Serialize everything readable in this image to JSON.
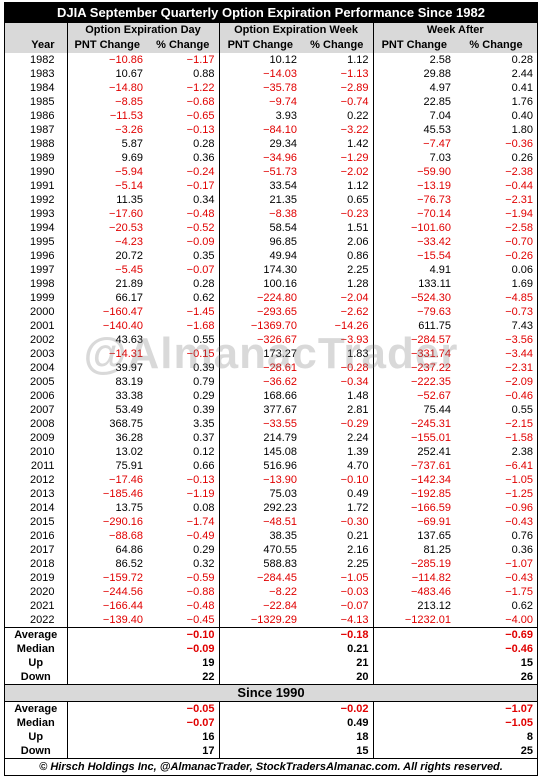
{
  "header": {
    "title": "DJIA September Quarterly Option Expiration Performance Since 1982"
  },
  "columns": {
    "groups": [
      "Option Expiration Day",
      "Option Expiration Week",
      "Week After"
    ],
    "labels": [
      "Year",
      "PNT Change",
      "% Change",
      "PNT Change",
      "% Change",
      "PNT Change",
      "% Change"
    ]
  },
  "table": {
    "rows": [
      [
        "1982",
        "−10.86",
        "−1.17",
        "10.12",
        "1.12",
        "2.58",
        "0.28"
      ],
      [
        "1983",
        "10.67",
        "0.88",
        "−14.03",
        "−1.13",
        "29.88",
        "2.44"
      ],
      [
        "1984",
        "−14.80",
        "−1.22",
        "−35.78",
        "−2.89",
        "4.97",
        "0.41"
      ],
      [
        "1985",
        "−8.85",
        "−0.68",
        "−9.74",
        "−0.74",
        "22.85",
        "1.76"
      ],
      [
        "1986",
        "−11.53",
        "−0.65",
        "3.93",
        "0.22",
        "7.04",
        "0.40"
      ],
      [
        "1987",
        "−3.26",
        "−0.13",
        "−84.10",
        "−3.22",
        "45.53",
        "1.80"
      ],
      [
        "1988",
        "5.87",
        "0.28",
        "29.34",
        "1.42",
        "−7.47",
        "−0.36"
      ],
      [
        "1989",
        "9.69",
        "0.36",
        "−34.96",
        "−1.29",
        "7.03",
        "0.26"
      ],
      [
        "1990",
        "−5.94",
        "−0.24",
        "−51.73",
        "−2.02",
        "−59.90",
        "−2.38"
      ],
      [
        "1991",
        "−5.14",
        "−0.17",
        "33.54",
        "1.12",
        "−13.19",
        "−0.44"
      ],
      [
        "1992",
        "11.35",
        "0.34",
        "21.35",
        "0.65",
        "−76.73",
        "−2.31"
      ],
      [
        "1993",
        "−17.60",
        "−0.48",
        "−8.38",
        "−0.23",
        "−70.14",
        "−1.94"
      ],
      [
        "1994",
        "−20.53",
        "−0.52",
        "58.54",
        "1.51",
        "−101.60",
        "−2.58"
      ],
      [
        "1995",
        "−4.23",
        "−0.09",
        "96.85",
        "2.06",
        "−33.42",
        "−0.70"
      ],
      [
        "1996",
        "20.72",
        "0.35",
        "49.94",
        "0.86",
        "−15.54",
        "−0.26"
      ],
      [
        "1997",
        "−5.45",
        "−0.07",
        "174.30",
        "2.25",
        "4.91",
        "0.06"
      ],
      [
        "1998",
        "21.89",
        "0.28",
        "100.16",
        "1.28",
        "133.11",
        "1.69"
      ],
      [
        "1999",
        "66.17",
        "0.62",
        "−224.80",
        "−2.04",
        "−524.30",
        "−4.85"
      ],
      [
        "2000",
        "−160.47",
        "−1.45",
        "−293.65",
        "−2.62",
        "−79.63",
        "−0.73"
      ],
      [
        "2001",
        "−140.40",
        "−1.68",
        "−1369.70",
        "−14.26",
        "611.75",
        "7.43"
      ],
      [
        "2002",
        "43.63",
        "0.55",
        "−326.67",
        "−3.93",
        "−284.57",
        "−3.56"
      ],
      [
        "2003",
        "−14.31",
        "−0.15",
        "173.27",
        "1.83",
        "−331.74",
        "−3.44"
      ],
      [
        "2004",
        "39.97",
        "0.39",
        "−28.61",
        "−0.28",
        "−237.22",
        "−2.31"
      ],
      [
        "2005",
        "83.19",
        "0.79",
        "−36.62",
        "−0.34",
        "−222.35",
        "−2.09"
      ],
      [
        "2006",
        "33.38",
        "0.29",
        "168.66",
        "1.48",
        "−52.67",
        "−0.46"
      ],
      [
        "2007",
        "53.49",
        "0.39",
        "377.67",
        "2.81",
        "75.44",
        "0.55"
      ],
      [
        "2008",
        "368.75",
        "3.35",
        "−33.55",
        "−0.29",
        "−245.31",
        "−2.15"
      ],
      [
        "2009",
        "36.28",
        "0.37",
        "214.79",
        "2.24",
        "−155.01",
        "−1.58"
      ],
      [
        "2010",
        "13.02",
        "0.12",
        "145.08",
        "1.39",
        "252.41",
        "2.38"
      ],
      [
        "2011",
        "75.91",
        "0.66",
        "516.96",
        "4.70",
        "−737.61",
        "−6.41"
      ],
      [
        "2012",
        "−17.46",
        "−0.13",
        "−13.90",
        "−0.10",
        "−142.34",
        "−1.05"
      ],
      [
        "2013",
        "−185.46",
        "−1.19",
        "75.03",
        "0.49",
        "−192.85",
        "−1.25"
      ],
      [
        "2014",
        "13.75",
        "0.08",
        "292.23",
        "1.72",
        "−166.59",
        "−0.96"
      ],
      [
        "2015",
        "−290.16",
        "−1.74",
        "−48.51",
        "−0.30",
        "−69.91",
        "−0.43"
      ],
      [
        "2016",
        "−88.68",
        "−0.49",
        "38.35",
        "0.21",
        "137.65",
        "0.76"
      ],
      [
        "2017",
        "64.86",
        "0.29",
        "470.55",
        "2.16",
        "81.25",
        "0.36"
      ],
      [
        "2018",
        "86.52",
        "0.32",
        "588.83",
        "2.25",
        "−285.19",
        "−1.07"
      ],
      [
        "2019",
        "−159.72",
        "−0.59",
        "−284.45",
        "−1.05",
        "−114.82",
        "−0.43"
      ],
      [
        "2020",
        "−244.56",
        "−0.88",
        "−8.22",
        "−0.03",
        "−483.46",
        "−1.75"
      ],
      [
        "2021",
        "−166.44",
        "−0.48",
        "−22.84",
        "−0.07",
        "213.12",
        "0.62"
      ],
      [
        "2022",
        "−139.40",
        "−0.45",
        "−1329.29",
        "−4.13",
        "−1232.01",
        "−4.00"
      ]
    ]
  },
  "summary": {
    "rows": [
      [
        "Average",
        "−0.10",
        "−0.18",
        "−0.69"
      ],
      [
        "Median",
        "−0.09",
        "0.21",
        "−0.46"
      ],
      [
        "Up",
        "19",
        "21",
        "15"
      ],
      [
        "Down",
        "22",
        "20",
        "26"
      ]
    ]
  },
  "since": {
    "title": "Since 1990",
    "rows": [
      [
        "Average",
        "−0.05",
        "−0.02",
        "−1.07"
      ],
      [
        "Median",
        "−0.07",
        "0.49",
        "−1.05"
      ],
      [
        "Up",
        "16",
        "18",
        "8"
      ],
      [
        "Down",
        "17",
        "15",
        "25"
      ]
    ]
  },
  "watermark": "@AlmanacTrader",
  "footer": "© Hirsch Holdings Inc, @AlmanacTrader, StockTradersAlmanac.com. All rights reserved."
}
